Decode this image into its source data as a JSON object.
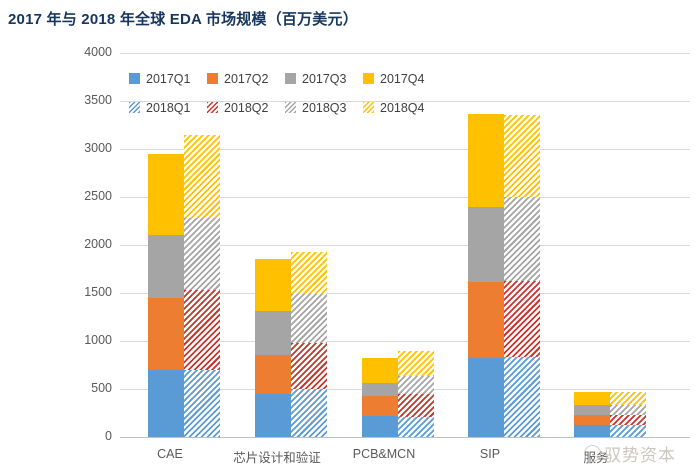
{
  "title": "2017 年与 2018 年全球 EDA 市场规模（百万美元）",
  "watermark": {
    "logo": "circle-seal",
    "text": "驭势资本"
  },
  "colors": {
    "title_text": "#17365D",
    "axis_text": "#595959",
    "gridline": "#D9D9D9",
    "q1_blue": "#5B9BD5",
    "q2_orange_2017": "#ED7D31",
    "q2_red_2018": "#C9342C",
    "q3_gray": "#A5A5A5",
    "q4_yellow": "#FFC000"
  },
  "chart_data": {
    "type": "bar",
    "variant": "grouped-stacked-columns",
    "title": "2017 年与 2018 年全球 EDA 市场规模（百万美元）",
    "unit": "百万美元",
    "categories": [
      "CAE",
      "芯片设计和验证",
      "PCB&MCN",
      "SIP",
      "服务"
    ],
    "stacks": [
      "2017",
      "2018"
    ],
    "series": [
      {
        "name": "2017Q1",
        "stack": "2017",
        "pattern": "solid",
        "color": "#5B9BD5",
        "values": [
          700,
          450,
          215,
          820,
          120
        ]
      },
      {
        "name": "2017Q2",
        "stack": "2017",
        "pattern": "solid",
        "color": "#ED7D31",
        "values": [
          750,
          405,
          210,
          790,
          105
        ]
      },
      {
        "name": "2017Q3",
        "stack": "2017",
        "pattern": "solid",
        "color": "#A5A5A5",
        "values": [
          650,
          460,
          135,
          790,
          105
        ]
      },
      {
        "name": "2017Q4",
        "stack": "2017",
        "pattern": "solid",
        "color": "#FFC000",
        "values": [
          850,
          540,
          260,
          960,
          140
        ]
      },
      {
        "name": "2018Q1",
        "stack": "2018",
        "pattern": "diagonal-hatch",
        "color": "#5B9BD5",
        "values": [
          700,
          500,
          210,
          830,
          120
        ]
      },
      {
        "name": "2018Q2",
        "stack": "2018",
        "pattern": "diagonal-hatch",
        "color": "#C9342C",
        "values": [
          830,
          480,
          240,
          790,
          105
        ]
      },
      {
        "name": "2018Q3",
        "stack": "2018",
        "pattern": "diagonal-hatch",
        "color": "#A5A5A5",
        "values": [
          750,
          510,
          190,
          880,
          105
        ]
      },
      {
        "name": "2018Q4",
        "stack": "2018",
        "pattern": "diagonal-hatch",
        "color": "#FFC000",
        "values": [
          870,
          435,
          260,
          850,
          140
        ]
      }
    ],
    "stack_totals": {
      "2017": [
        2950,
        1855,
        820,
        3360,
        470
      ],
      "2018": [
        3150,
        1925,
        900,
        3350,
        470
      ]
    },
    "ylim": [
      0,
      4000
    ],
    "yticks": [
      0,
      500,
      1000,
      1500,
      2000,
      2500,
      3000,
      3500,
      4000
    ],
    "grid": "horizontal",
    "legend": {
      "position": "top-left-inside",
      "rows": [
        [
          "2017Q1",
          "2017Q2",
          "2017Q3",
          "2017Q4"
        ],
        [
          "2018Q1",
          "2018Q2",
          "2018Q3",
          "2018Q4"
        ]
      ]
    }
  }
}
